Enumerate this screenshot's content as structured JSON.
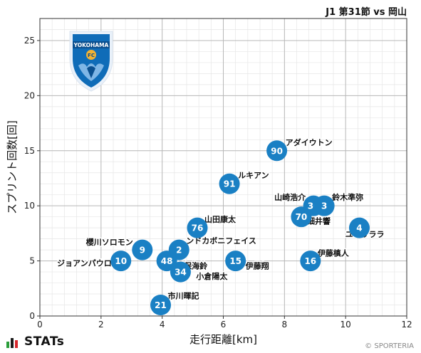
{
  "header": {
    "title": "J1 第31節 vs 岡山"
  },
  "footer": {
    "brand": "STATs",
    "copyright": "© SPORTERIA"
  },
  "colors": {
    "point": "#1a80c4",
    "point_text": "#ffffff",
    "grid": "#cccccc",
    "frame": "#333333"
  },
  "icons": {
    "team_logo": "yokohama-fc-crest-icon",
    "brand_logo": "stats-bars-icon"
  },
  "team_logo_text": {
    "name": "YOKOHAMA",
    "badge": "FC"
  },
  "chart_data": {
    "type": "scatter",
    "title": "",
    "xlabel": "走行距離[km]",
    "ylabel": "スプリント回数[回]",
    "xlim": [
      0,
      12
    ],
    "ylim": [
      0,
      27
    ],
    "xticks": [
      0,
      2,
      4,
      6,
      8,
      10,
      12
    ],
    "yticks": [
      0,
      5,
      10,
      15,
      20,
      25
    ],
    "grid": true,
    "points": [
      {
        "number": "21",
        "name": "市川暉記",
        "x": 3.95,
        "y": 1
      },
      {
        "number": "34",
        "name": "小倉陽太",
        "x": 4.6,
        "y": 4
      },
      {
        "number": "48",
        "name": "新保海鈴",
        "x": 4.15,
        "y": 5
      },
      {
        "number": "10",
        "name": "ジョアンパウロ",
        "x": 2.65,
        "y": 5
      },
      {
        "number": "9",
        "name": "櫻川ソロモン",
        "x": 3.35,
        "y": 6
      },
      {
        "number": "2",
        "name": "ンドカボニフェイス",
        "x": 4.55,
        "y": 6
      },
      {
        "number": "15",
        "name": "伊藤翔",
        "x": 6.4,
        "y": 5
      },
      {
        "number": "16",
        "name": "伊藤槙人",
        "x": 8.85,
        "y": 5
      },
      {
        "number": "76",
        "name": "山田康太",
        "x": 5.15,
        "y": 8
      },
      {
        "number": "4",
        "name": "ユーリララ",
        "x": 10.45,
        "y": 8
      },
      {
        "number": "70",
        "name": "細井響",
        "x": 8.55,
        "y": 9
      },
      {
        "number": "30",
        "name": "山崎浩介",
        "x": 8.95,
        "y": 10
      },
      {
        "number": "3",
        "name": "鈴木準弥",
        "x": 9.3,
        "y": 10
      },
      {
        "number": "91",
        "name": "ルキアン",
        "x": 6.2,
        "y": 12
      },
      {
        "number": "90",
        "name": "アダイウトン",
        "x": 7.75,
        "y": 15
      }
    ]
  }
}
